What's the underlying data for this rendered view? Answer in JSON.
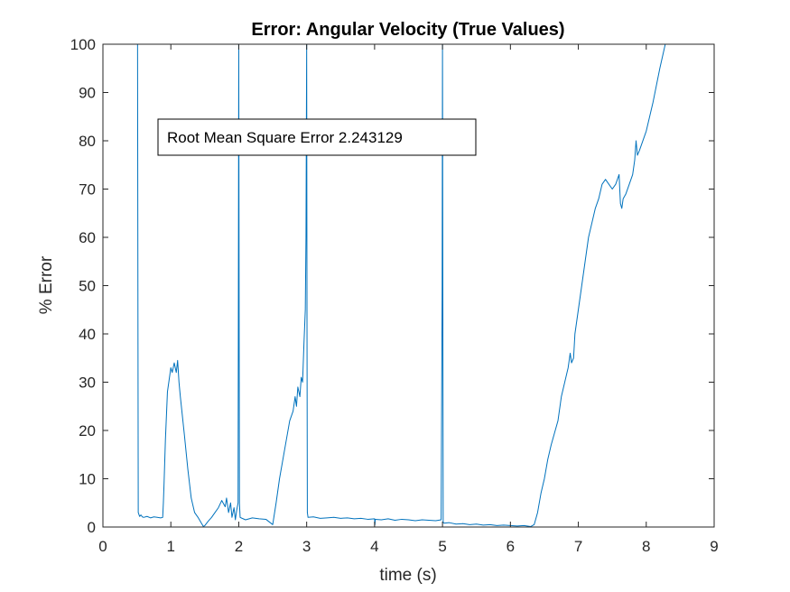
{
  "chart_data": {
    "type": "line",
    "title": "Error: Angular Velocity (True Values)",
    "xlabel": "time (s)",
    "ylabel": "% Error",
    "xlim": [
      0,
      9
    ],
    "ylim": [
      0,
      100
    ],
    "xticks": [
      0,
      1,
      2,
      3,
      4,
      5,
      6,
      7,
      8,
      9
    ],
    "yticks": [
      0,
      10,
      20,
      30,
      40,
      50,
      60,
      70,
      80,
      90,
      100
    ],
    "grid": false,
    "annotation": "Root Mean Square Error 2.243129",
    "series_color": "#0072BD",
    "series": [
      {
        "x": [
          0.5,
          0.51,
          0.515,
          0.52,
          0.54,
          0.56,
          0.58,
          0.6,
          0.65,
          0.7,
          0.75,
          0.8,
          0.85,
          0.88,
          0.89,
          0.9,
          0.92,
          0.95,
          0.98,
          1.0,
          1.02,
          1.05,
          1.08,
          1.1,
          1.12,
          1.14,
          1.17,
          1.2,
          1.25,
          1.3,
          1.35,
          1.4,
          1.45,
          1.48,
          1.5,
          1.55,
          1.6,
          1.65,
          1.7,
          1.75,
          1.8,
          1.82,
          1.85,
          1.88,
          1.9,
          1.93,
          1.95,
          1.97,
          1.99,
          1.995,
          2.0,
          2.005,
          2.01,
          2.02,
          2.05,
          2.1,
          2.2,
          2.3,
          2.4,
          2.5,
          2.55,
          2.6,
          2.65,
          2.7,
          2.75,
          2.8,
          2.83,
          2.85,
          2.87,
          2.9,
          2.92,
          2.94,
          2.96,
          2.98,
          2.99,
          2.995,
          3.0,
          3.005,
          3.01,
          3.02,
          3.1,
          3.2,
          3.3,
          3.4,
          3.5,
          3.6,
          3.7,
          3.8,
          3.9,
          4.0,
          4.005,
          4.01,
          4.1,
          4.2,
          4.3,
          4.4,
          4.5,
          4.6,
          4.7,
          4.8,
          4.9,
          4.98,
          4.995,
          5.0,
          5.005,
          5.01,
          5.02,
          5.1,
          5.2,
          5.3,
          5.4,
          5.5,
          5.6,
          5.7,
          5.8,
          5.9,
          6.0,
          6.1,
          6.2,
          6.3,
          6.35,
          6.4,
          6.45,
          6.5,
          6.55,
          6.6,
          6.7,
          6.75,
          6.8,
          6.85,
          6.88,
          6.9,
          6.93,
          6.95,
          7.0,
          7.05,
          7.1,
          7.15,
          7.2,
          7.25,
          7.3,
          7.35,
          7.4,
          7.45,
          7.5,
          7.55,
          7.6,
          7.62,
          7.64,
          7.66,
          7.7,
          7.75,
          7.8,
          7.83,
          7.85,
          7.87,
          7.9,
          8.0,
          8.1,
          8.2,
          8.28
        ],
        "y": [
          100,
          100,
          50,
          3,
          2.2,
          2.5,
          2.1,
          2.0,
          2.2,
          1.9,
          2.1,
          2.0,
          1.9,
          2.0,
          5.0,
          9.0,
          18.0,
          28.0,
          31.0,
          33.0,
          32.0,
          34.0,
          32.0,
          34.5,
          30.0,
          27.0,
          23.0,
          19.0,
          12.0,
          6.0,
          3.0,
          2.0,
          0.8,
          0.1,
          0.3,
          1.2,
          2.0,
          3.0,
          4.0,
          5.5,
          4.2,
          6.0,
          3.0,
          5.0,
          2.0,
          4.0,
          1.5,
          3.5,
          5.0,
          50.0,
          100.0,
          50.0,
          5.0,
          2.0,
          1.8,
          1.5,
          1.9,
          1.7,
          1.6,
          0.5,
          5.0,
          10.0,
          14.0,
          18.0,
          22.0,
          24.0,
          27.0,
          25.0,
          29.0,
          27.0,
          31.0,
          30.0,
          38.0,
          45.0,
          60.0,
          80.0,
          100.0,
          40.0,
          3.0,
          2.0,
          2.1,
          1.8,
          1.9,
          2.0,
          1.8,
          1.9,
          1.7,
          1.8,
          1.6,
          1.7,
          0.5,
          1.6,
          1.5,
          1.7,
          1.4,
          1.6,
          1.5,
          1.3,
          1.5,
          1.4,
          1.3,
          1.5,
          50.0,
          100.0,
          50.0,
          1.0,
          0.8,
          0.9,
          0.6,
          0.7,
          0.5,
          0.6,
          0.4,
          0.5,
          0.3,
          0.4,
          0.3,
          0.2,
          0.3,
          0.1,
          0.5,
          3.0,
          7.0,
          10.0,
          14.0,
          17.0,
          22.0,
          27.0,
          30.0,
          33.0,
          36.0,
          34.0,
          35.0,
          40.0,
          45.0,
          50.0,
          55.0,
          60.0,
          63.0,
          66.0,
          68.0,
          71.0,
          72.0,
          71.0,
          70.0,
          71.0,
          73.0,
          67.0,
          66.0,
          68.0,
          69.0,
          71.0,
          73.0,
          76.0,
          80.0,
          77.0,
          78.0,
          82.0,
          88.0,
          95.0,
          100.0
        ]
      }
    ]
  }
}
